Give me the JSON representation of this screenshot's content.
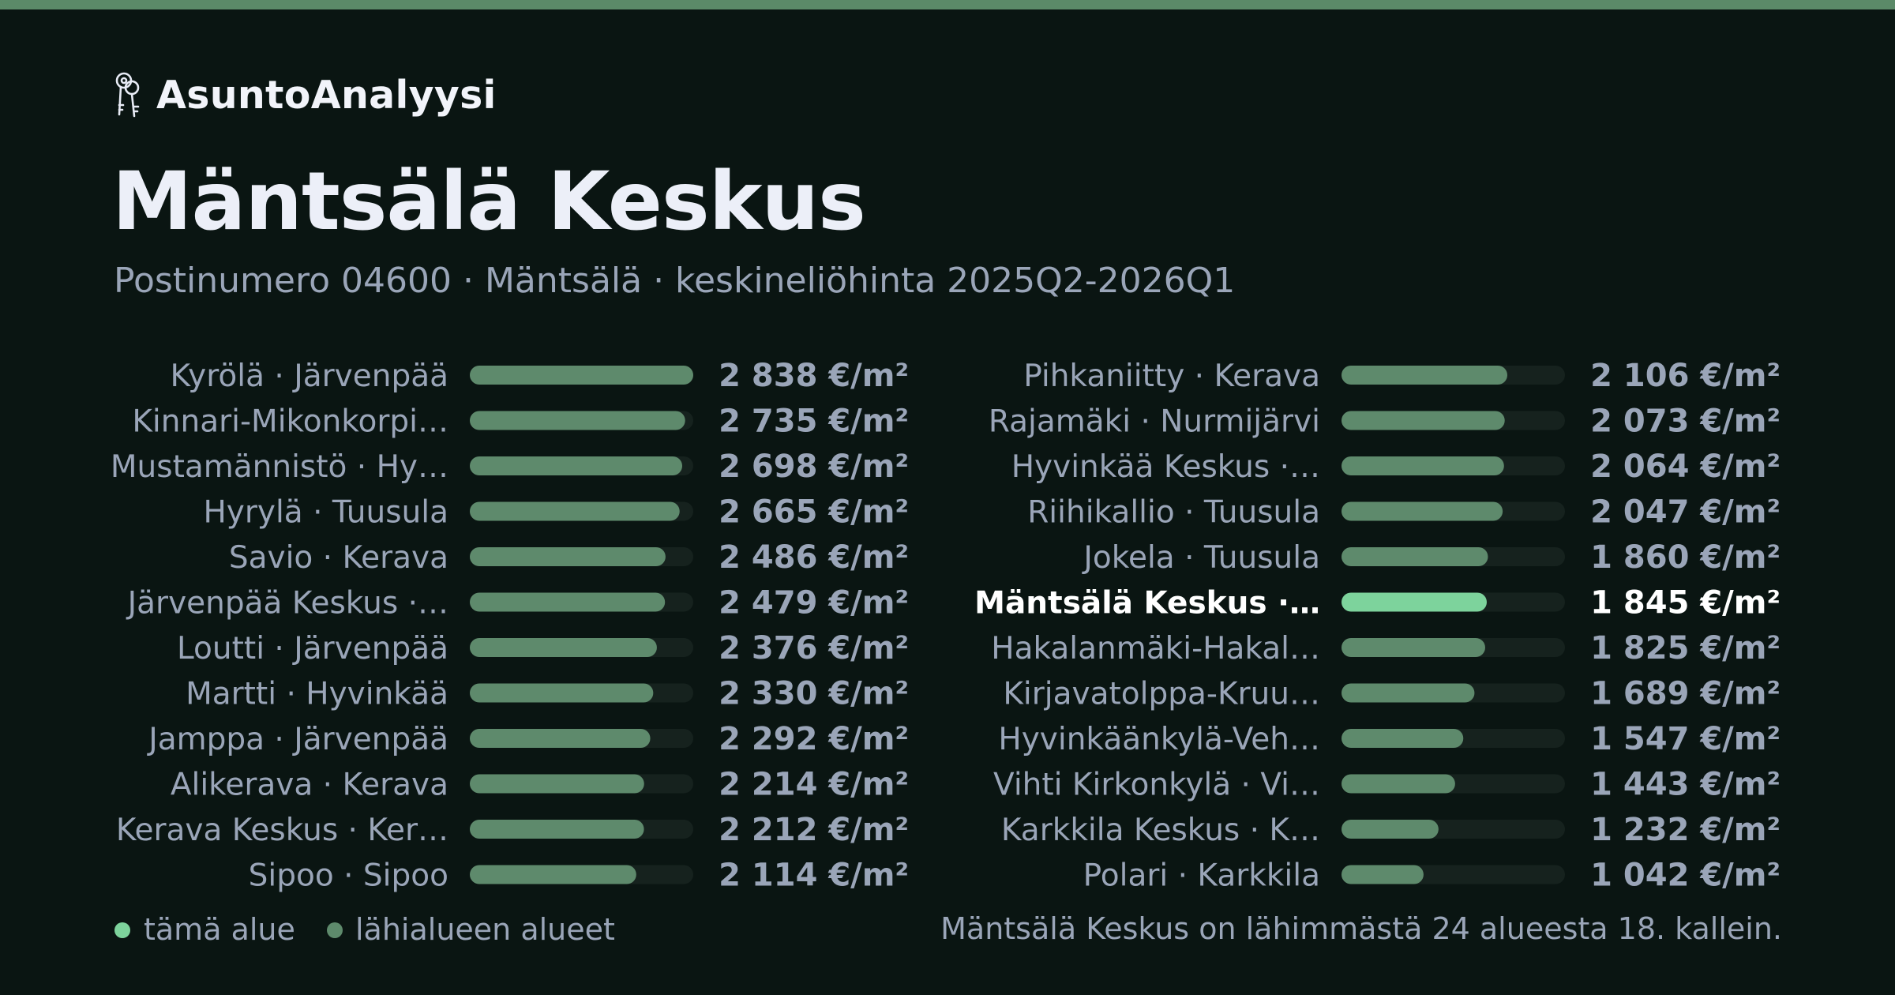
{
  "brand": {
    "name": "AsuntoAnalyysi",
    "icon": "keys-icon"
  },
  "page": {
    "title": "Mäntsälä Keskus",
    "subtitle": "Postinumero 04600 · Mäntsälä · keskineliöhinta 2025Q2-2026Q1",
    "ranking_note": "Mäntsälä Keskus on lähimmästä 24 alueesta 18. kallein."
  },
  "colors": {
    "background": "#0a1512",
    "accent_bar": "#5b8a68",
    "this_area": "#7dd39c",
    "nearby_area": "#5e8a6c",
    "track": "#16221e",
    "label_text": "#9aa5b8",
    "highlight_text": "#ffffff"
  },
  "chart_data": {
    "type": "bar",
    "orientation": "horizontal",
    "unit": "€/m²",
    "xlim": [
      0,
      2838
    ],
    "highlight_index": 17,
    "legend": [
      {
        "label": "tämä alue",
        "color": "#7dd39c"
      },
      {
        "label": "lähialueen alueet",
        "color": "#5e8a6c"
      }
    ],
    "categories": [
      "Kyrölä · Järvenpää",
      "Kinnari-Mikonkorpi…",
      "Mustamännistö · Hy…",
      "Hyrylä · Tuusula",
      "Savio · Kerava",
      "Järvenpää Keskus ·…",
      "Loutti · Järvenpää",
      "Martti · Hyvinkää",
      "Jamppa · Järvenpää",
      "Alikerava · Kerava",
      "Kerava Keskus · Ker…",
      "Sipoo · Sipoo",
      "Pihkaniitty · Kerava",
      "Rajamäki · Nurmijärvi",
      "Hyvinkää Keskus ·…",
      "Riihikallio · Tuusula",
      "Jokela · Tuusula",
      "Mäntsälä Keskus ·…",
      "Hakalanmäki-Hakal…",
      "Kirjavatolppa-Kruu…",
      "Hyvinkäänkylä-Veh…",
      "Vihti Kirkonkylä · Vi…",
      "Karkkila Keskus · K…",
      "Polari · Karkkila"
    ],
    "values": [
      2838,
      2735,
      2698,
      2665,
      2486,
      2479,
      2376,
      2330,
      2292,
      2214,
      2212,
      2114,
      2106,
      2073,
      2064,
      2047,
      1860,
      1845,
      1825,
      1689,
      1547,
      1443,
      1232,
      1042
    ],
    "value_labels": [
      "2 838 €/m²",
      "2 735 €/m²",
      "2 698 €/m²",
      "2 665 €/m²",
      "2 486 €/m²",
      "2 479 €/m²",
      "2 376 €/m²",
      "2 330 €/m²",
      "2 292 €/m²",
      "2 214 €/m²",
      "2 212 €/m²",
      "2 114 €/m²",
      "2 106 €/m²",
      "2 073 €/m²",
      "2 064 €/m²",
      "2 047 €/m²",
      "1 860 €/m²",
      "1 845 €/m²",
      "1 825 €/m²",
      "1 689 €/m²",
      "1 547 €/m²",
      "1 443 €/m²",
      "1 232 €/m²",
      "1 042 €/m²"
    ]
  }
}
